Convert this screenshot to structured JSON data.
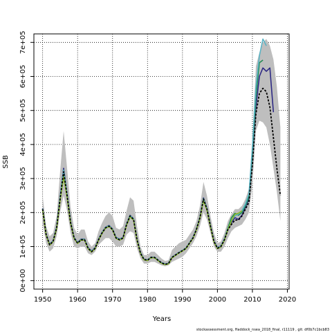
{
  "chart_data": {
    "type": "line",
    "title": "",
    "xlabel": "Years",
    "ylabel": "SSB",
    "xlim": [
      1947.5,
      2020.5
    ],
    "ylim": [
      -25000,
      725000
    ],
    "xticks": [
      1950,
      1960,
      1970,
      1980,
      1990,
      2000,
      2010,
      2020
    ],
    "xtick_labels": [
      "1950",
      "1960",
      "1970",
      "1980",
      "1990",
      "2000",
      "2010",
      "2020"
    ],
    "yticks": [
      0,
      100000,
      200000,
      300000,
      400000,
      500000,
      600000,
      700000
    ],
    "ytick_labels": [
      "0e+00",
      "1e+05",
      "2e+05",
      "3e+05",
      "4e+05",
      "5e+05",
      "6e+05",
      "7e+05"
    ],
    "grid": true,
    "footer": "stockassessment.org, Haddock_nsea_2018_final, r11119 , git: df0b7c1bcb83",
    "band": {
      "color": "#bebebe",
      "x": [
        1950,
        1951,
        1952,
        1953,
        1954,
        1955,
        1956,
        1957,
        1958,
        1959,
        1960,
        1961,
        1962,
        1963,
        1964,
        1965,
        1966,
        1967,
        1968,
        1969,
        1970,
        1971,
        1972,
        1973,
        1974,
        1975,
        1976,
        1977,
        1978,
        1979,
        1980,
        1981,
        1982,
        1983,
        1984,
        1985,
        1986,
        1987,
        1988,
        1989,
        1990,
        1991,
        1992,
        1993,
        1994,
        1995,
        1996,
        1997,
        1998,
        1999,
        2000,
        2001,
        2002,
        2003,
        2004,
        2005,
        2006,
        2007,
        2008,
        2009,
        2010,
        2011,
        2012,
        2013,
        2014,
        2015,
        2016,
        2017,
        2018
      ],
      "lower": [
        170000,
        110000,
        85000,
        95000,
        130000,
        200000,
        250000,
        205000,
        140000,
        100000,
        95000,
        100000,
        100000,
        80000,
        75000,
        85000,
        105000,
        115000,
        125000,
        125000,
        115000,
        100000,
        100000,
        105000,
        135000,
        145000,
        140000,
        95000,
        65000,
        50000,
        50000,
        55000,
        55000,
        50000,
        45000,
        42000,
        45000,
        55000,
        60000,
        65000,
        70000,
        80000,
        95000,
        110000,
        130000,
        160000,
        200000,
        180000,
        140000,
        100000,
        85000,
        85000,
        100000,
        125000,
        145000,
        155000,
        160000,
        165000,
        180000,
        200000,
        280000,
        440000,
        470000,
        465000,
        450000,
        400000,
        330000,
        260000,
        175000
      ],
      "upper": [
        250000,
        160000,
        130000,
        140000,
        190000,
        320000,
        440000,
        330000,
        215000,
        155000,
        135000,
        150000,
        150000,
        115000,
        100000,
        110000,
        145000,
        170000,
        190000,
        200000,
        190000,
        155000,
        150000,
        160000,
        205000,
        245000,
        235000,
        160000,
        100000,
        75000,
        75000,
        85000,
        85000,
        75000,
        65000,
        58000,
        60000,
        90000,
        100000,
        110000,
        115000,
        120000,
        135000,
        150000,
        175000,
        220000,
        290000,
        250000,
        190000,
        140000,
        110000,
        115000,
        140000,
        175000,
        195000,
        210000,
        210000,
        220000,
        240000,
        270000,
        420000,
        630000,
        670000,
        700000,
        710000,
        690000,
        650000,
        570000,
        450000
      ]
    },
    "series": [
      {
        "color": "#000000",
        "dashed": true,
        "values": [
          210000,
          135000,
          105000,
          115000,
          155000,
          240000,
          320000,
          250000,
          170000,
          125000,
          110000,
          120000,
          120000,
          95000,
          85000,
          95000,
          120000,
          140000,
          155000,
          160000,
          150000,
          125000,
          120000,
          125000,
          165000,
          190000,
          180000,
          120000,
          80000,
          62000,
          60000,
          68000,
          68000,
          60000,
          52000,
          48000,
          50000,
          68000,
          75000,
          82000,
          88000,
          95000,
          110000,
          125000,
          150000,
          185000,
          240000,
          210000,
          160000,
          115000,
          95000,
          100000,
          120000,
          150000,
          165000,
          178000,
          178000,
          190000,
          210000,
          230000,
          340000,
          490000,
          550000,
          565000,
          555000,
          510000,
          420000,
          330000,
          250000
        ]
      },
      {
        "color": "#2e2a84",
        "dashed": false,
        "values": [
          212000,
          137000,
          107000,
          117000,
          158000,
          245000,
          330000,
          255000,
          172000,
          127000,
          112000,
          122000,
          122000,
          97000,
          87000,
          97000,
          122000,
          142000,
          157000,
          162000,
          152000,
          127000,
          122000,
          127000,
          167000,
          192000,
          182000,
          122000,
          82000,
          63000,
          61000,
          69000,
          69000,
          61000,
          53000,
          49000,
          51000,
          69000,
          76000,
          83000,
          89000,
          96000,
          111000,
          127000,
          152000,
          187000,
          243000,
          213000,
          162000,
          117000,
          97000,
          102000,
          123000,
          153000,
          170000,
          185000,
          180000,
          192000,
          215000,
          240000,
          360000,
          510000,
          600000,
          625000,
          615000,
          625000,
          495000
        ]
      },
      {
        "color": "#218a53",
        "dashed": false,
        "values": [
          211000,
          136000,
          106000,
          116000,
          157000,
          243000,
          325000,
          252000,
          171000,
          126000,
          111000,
          121000,
          121000,
          96000,
          86000,
          96000,
          121000,
          141000,
          156000,
          161000,
          151000,
          126000,
          121000,
          126000,
          166000,
          191000,
          181000,
          121000,
          81000,
          62500,
          60500,
          68500,
          68500,
          60500,
          52500,
          48500,
          50500,
          68500,
          75500,
          82500,
          88500,
          95500,
          110500,
          126000,
          151000,
          186000,
          241000,
          211000,
          161000,
          116000,
          96000,
          101000,
          122000,
          155000,
          185000,
          198000,
          192000,
          200000,
          220000,
          245000,
          370000,
          540000,
          640000,
          648000
        ]
      },
      {
        "color": "#5ab3c4",
        "dashed": false,
        "values": [
          211000,
          136000,
          106000,
          116000,
          157000,
          243000,
          325000,
          252000,
          171000,
          126000,
          111000,
          121000,
          121000,
          96000,
          86000,
          96000,
          121000,
          141000,
          156000,
          161000,
          151000,
          126000,
          121000,
          126000,
          166000,
          191000,
          181000,
          121000,
          81000,
          62500,
          60500,
          68500,
          68500,
          60500,
          52500,
          48500,
          50500,
          68500,
          75500,
          82500,
          88500,
          95500,
          110500,
          126000,
          151000,
          186000,
          241000,
          211000,
          161000,
          116000,
          96000,
          101000,
          122000,
          152000,
          175000,
          190000,
          195000,
          205000,
          225000,
          255000,
          390000,
          570000,
          660000,
          710000,
          690000
        ]
      },
      {
        "color": "#8ab526",
        "dashed": false,
        "values": [
          209000,
          134000,
          104000,
          114000,
          153000,
          235000,
          305000,
          245000,
          168000,
          124000,
          109000,
          119000,
          119000,
          94000,
          84000,
          94000,
          119000,
          139000,
          154000,
          159000,
          149000,
          124000,
          119000,
          124000,
          163000,
          187000,
          178000,
          119000,
          79000,
          61000,
          59000,
          67000,
          67000,
          59000,
          51000,
          47000,
          49000,
          67000,
          74000,
          81000,
          87000,
          94000,
          109000,
          124000,
          149000,
          183000,
          235000,
          207000,
          158000,
          114000,
          94000,
          99000,
          119000,
          150000,
          175000,
          195000,
          198000,
          205000
        ]
      }
    ]
  }
}
